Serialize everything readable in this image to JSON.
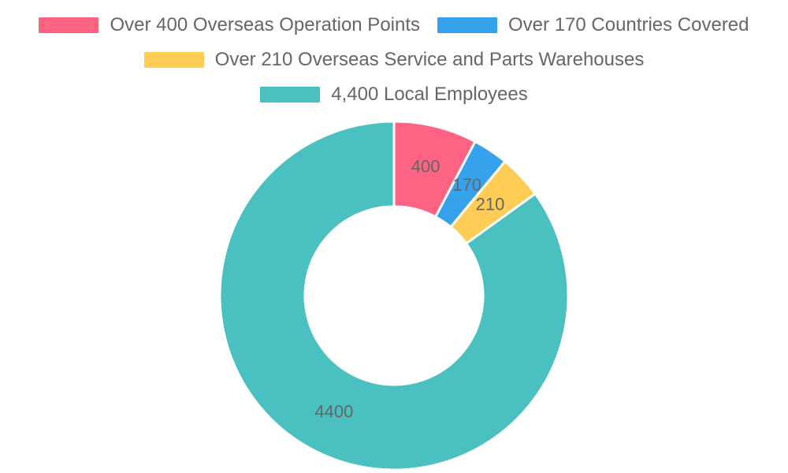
{
  "chart_data": {
    "type": "pie",
    "series": [
      {
        "name": "Over 400 Overseas Operation Points",
        "value": 400,
        "color": "#ff6384"
      },
      {
        "name": "Over 170 Countries Covered",
        "value": 170,
        "color": "#36a2eb"
      },
      {
        "name": "Over 210 Overseas Service and Parts Warehouses",
        "value": 210,
        "color": "#ffcd56"
      },
      {
        "name": "4,400 Local Employees",
        "value": 4400,
        "color": "#4bc0c0"
      }
    ],
    "data_labels": [
      "400",
      "170",
      "210",
      "4400"
    ],
    "legend": {
      "position": "top"
    },
    "donut": true
  }
}
